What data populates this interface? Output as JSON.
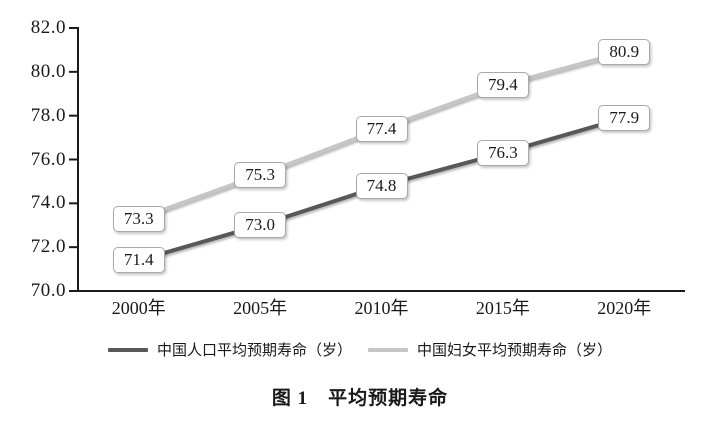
{
  "chart_data": {
    "type": "line",
    "title": "图 1　平均预期寿命",
    "categories": [
      "2000年",
      "2005年",
      "2010年",
      "2015年",
      "2020年"
    ],
    "series": [
      {
        "name": "中国人口平均预期寿命（岁）",
        "values": [
          71.4,
          73.0,
          74.8,
          76.3,
          77.9
        ],
        "color": "#585858"
      },
      {
        "name": "中国妇女平均预期寿命（岁）",
        "values": [
          73.3,
          75.3,
          77.4,
          79.4,
          80.9
        ],
        "color": "#c6c6c6"
      }
    ],
    "ylim": [
      70.0,
      82.0
    ],
    "y_ticks": [
      82.0,
      80.0,
      78.0,
      76.0,
      74.0,
      72.0,
      70.0
    ],
    "grid": false,
    "legend_position": "bottom",
    "show_data_labels": true,
    "axis_color": "#1a1a1a",
    "label_box": {
      "bg": "#ffffff",
      "border": "#a9a9a9"
    }
  }
}
